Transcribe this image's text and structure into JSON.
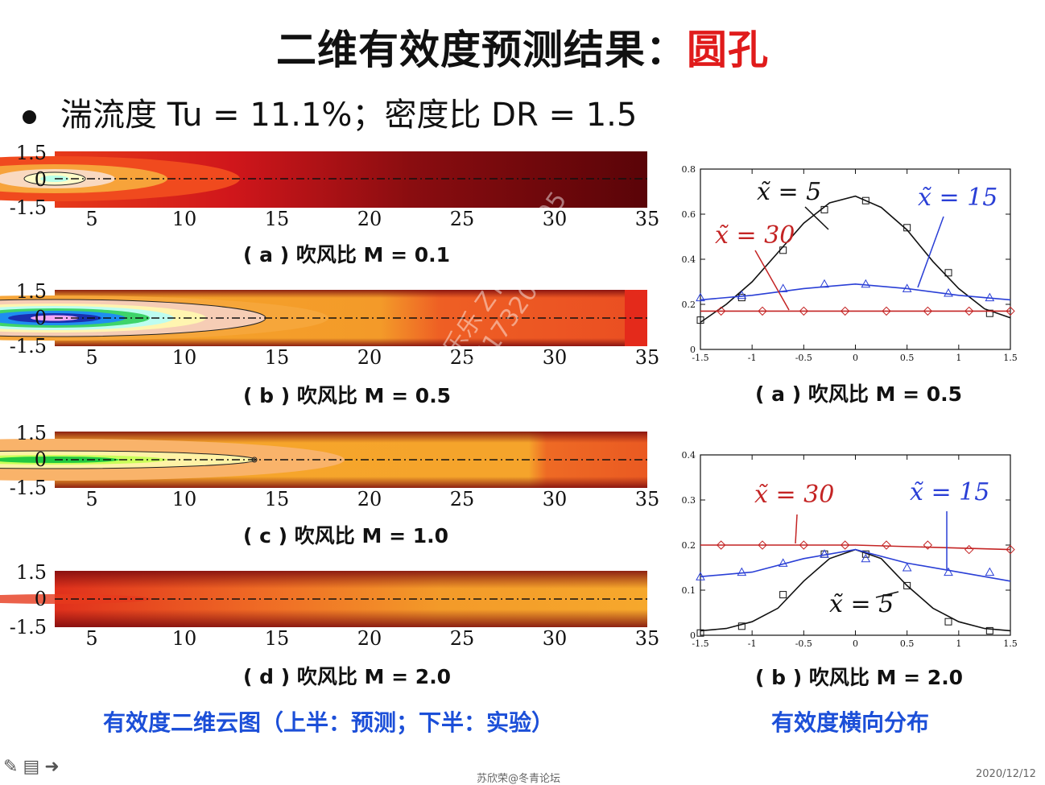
{
  "slide": {
    "title_main": "二维有效度预测结果：",
    "title_accent": "圆孔",
    "bullet": "湍流度 Tu = 11.1%；密度比 DR = 1.5",
    "left_caption": "有效度二维云图（上半：预测；下半：实验）",
    "right_caption": "有效度横向分布",
    "footer_center": "苏欣荣@冬青论坛",
    "footer_date": "2020/12/12",
    "watermark": "李乐乐 ZY2004205\n+8617320091203"
  },
  "contours": [
    {
      "caption": "( a ) 吹风比 M = 0.1"
    },
    {
      "caption": "( b ) 吹风比 M = 0.5"
    },
    {
      "caption": "( c ) 吹风比 M = 1.0"
    },
    {
      "caption": "( d ) 吹风比 M = 2.0"
    }
  ],
  "contour_axes": {
    "y_ticks": [
      "1.5",
      "0",
      "-1.5"
    ],
    "x_ticks": [
      "5",
      "10",
      "15",
      "20",
      "25",
      "30",
      "35"
    ]
  },
  "line_plots": [
    {
      "caption": "( a ) 吹风比 M = 0.5"
    },
    {
      "caption": "( b ) 吹风比 M = 2.0"
    }
  ],
  "chart_data": [
    {
      "type": "line",
      "title": "( a ) 吹风比 M = 0.5",
      "xlim": [
        -1.5,
        1.5
      ],
      "ylim": [
        0,
        0.8
      ],
      "x_ticks": [
        "-1.5",
        "-1",
        "-0.5",
        "0",
        "0.5",
        "1",
        "1.5"
      ],
      "y_ticks": [
        "0",
        "0.2",
        "0.4",
        "0.6",
        "0.8"
      ],
      "series": [
        {
          "name": "x̃ = 5",
          "color": "#111111",
          "marker": "square",
          "x": [
            -1.5,
            -1.1,
            -0.7,
            -0.3,
            0.1,
            0.5,
            0.9,
            1.3
          ],
          "y": [
            0.13,
            0.23,
            0.44,
            0.62,
            0.66,
            0.54,
            0.34,
            0.16
          ],
          "line_x": [
            -1.5,
            -1.25,
            -1.0,
            -0.75,
            -0.5,
            -0.25,
            0.0,
            0.25,
            0.5,
            0.75,
            1.0,
            1.25,
            1.5
          ],
          "line_y": [
            0.12,
            0.2,
            0.3,
            0.43,
            0.56,
            0.65,
            0.68,
            0.63,
            0.53,
            0.39,
            0.27,
            0.18,
            0.14
          ]
        },
        {
          "name": "x̃ = 15",
          "color": "#2a3fd6",
          "marker": "triangle",
          "x": [
            -1.5,
            -1.1,
            -0.7,
            -0.3,
            0.1,
            0.5,
            0.9,
            1.3
          ],
          "y": [
            0.23,
            0.24,
            0.27,
            0.29,
            0.29,
            0.27,
            0.25,
            0.23
          ],
          "line_x": [
            -1.5,
            -1.0,
            -0.5,
            0.0,
            0.5,
            1.0,
            1.5
          ],
          "line_y": [
            0.22,
            0.24,
            0.27,
            0.29,
            0.27,
            0.24,
            0.22
          ]
        },
        {
          "name": "x̃ = 30",
          "color": "#c42424",
          "marker": "diamond",
          "x": [
            -1.3,
            -0.9,
            -0.5,
            -0.1,
            0.3,
            0.7,
            1.1,
            1.5
          ],
          "y": [
            0.17,
            0.17,
            0.17,
            0.17,
            0.17,
            0.17,
            0.17,
            0.17
          ],
          "line_x": [
            -1.5,
            0.0,
            1.5
          ],
          "line_y": [
            0.17,
            0.17,
            0.17
          ]
        }
      ]
    },
    {
      "type": "line",
      "title": "( b ) 吹风比 M = 2.0",
      "xlim": [
        -1.5,
        1.5
      ],
      "ylim": [
        0,
        0.4
      ],
      "x_ticks": [
        "-1.5",
        "-1",
        "-0.5",
        "0",
        "0.5",
        "1",
        "1.5"
      ],
      "y_ticks": [
        "0",
        "0.1",
        "0.2",
        "0.3",
        "0.4"
      ],
      "series": [
        {
          "name": "x̃ = 5",
          "color": "#111111",
          "marker": "square",
          "x": [
            -1.5,
            -1.1,
            -0.7,
            -0.3,
            0.1,
            0.5,
            0.9,
            1.3
          ],
          "y": [
            0.005,
            0.02,
            0.09,
            0.18,
            0.18,
            0.11,
            0.03,
            0.01
          ],
          "line_x": [
            -1.5,
            -1.25,
            -1.0,
            -0.75,
            -0.5,
            -0.25,
            0.0,
            0.25,
            0.5,
            0.75,
            1.0,
            1.25,
            1.5
          ],
          "line_y": [
            0.01,
            0.015,
            0.03,
            0.06,
            0.12,
            0.17,
            0.19,
            0.17,
            0.11,
            0.06,
            0.03,
            0.015,
            0.01
          ]
        },
        {
          "name": "x̃ = 15",
          "color": "#2a3fd6",
          "marker": "triangle",
          "x": [
            -1.5,
            -1.1,
            -0.7,
            -0.3,
            0.1,
            0.5,
            0.9,
            1.3
          ],
          "y": [
            0.13,
            0.14,
            0.16,
            0.18,
            0.17,
            0.15,
            0.14,
            0.14
          ],
          "line_x": [
            -1.5,
            -1.0,
            -0.5,
            0.0,
            0.5,
            1.0,
            1.5
          ],
          "line_y": [
            0.13,
            0.14,
            0.17,
            0.19,
            0.16,
            0.14,
            0.12
          ]
        },
        {
          "name": "x̃ = 30",
          "color": "#c42424",
          "marker": "diamond",
          "x": [
            -1.3,
            -0.9,
            -0.5,
            -0.1,
            0.3,
            0.7,
            1.1,
            1.5
          ],
          "y": [
            0.2,
            0.2,
            0.2,
            0.2,
            0.2,
            0.2,
            0.19,
            0.19
          ],
          "line_x": [
            -1.5,
            0.0,
            1.5
          ],
          "line_y": [
            0.2,
            0.2,
            0.19
          ]
        }
      ]
    }
  ]
}
